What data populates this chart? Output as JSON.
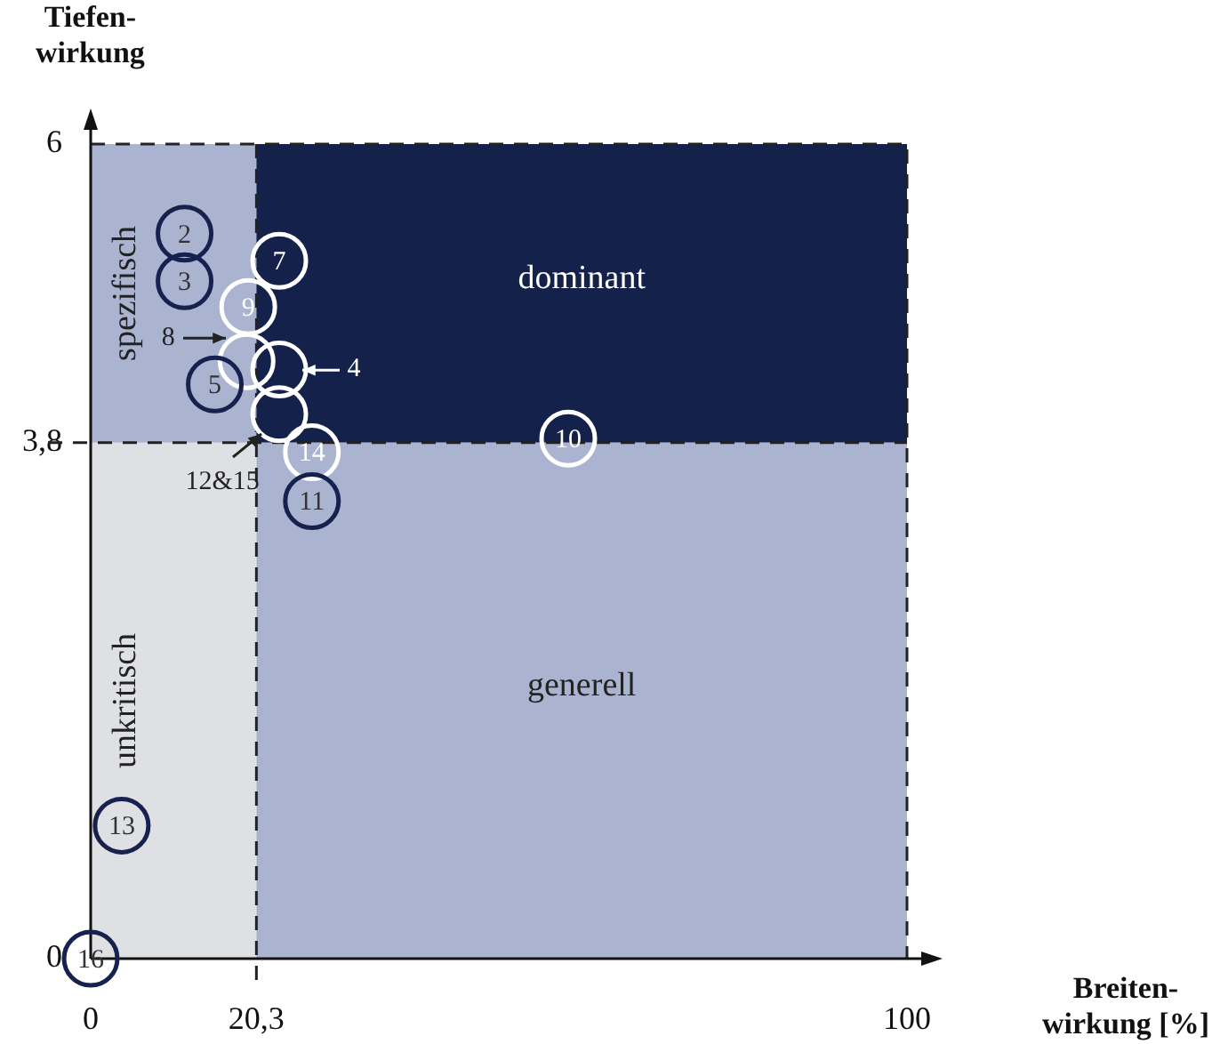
{
  "chart_data": {
    "type": "scatter",
    "xlabel": "Breiten-\nwirkung [%]",
    "ylabel": "Tiefen-\nwirkung",
    "x": [
      11.5,
      11.5,
      23.1,
      19.3,
      19.1,
      15.2,
      23.1,
      23.1,
      27.1,
      27.1,
      58.5,
      3.8,
      0
    ],
    "values": [
      5.34,
      4.99,
      5.14,
      4.8,
      4.4,
      4.23,
      4.34,
      4.01,
      3.73,
      3.37,
      3.83,
      0.98,
      0
    ],
    "colors": [
      "#16214d",
      "#16214d",
      "#ffffff",
      "#ffffff",
      "#ffffff",
      "#16214d",
      "#ffffff",
      "#ffffff",
      "#ffffff",
      "#16214d",
      "#ffffff",
      "#16214d",
      "#16214d"
    ],
    "marker": "circle",
    "xlim": [
      0,
      100
    ],
    "xticks": [
      0,
      {
        "value": 20.3,
        "label": "20,3"
      },
      100
    ],
    "ylim": [
      0,
      6
    ],
    "yticks": [
      0,
      {
        "value": 3.8,
        "label": "3,8"
      },
      6
    ],
    "ref_lines": [
      {
        "axis": "x",
        "value": 20.3,
        "color": "#222222",
        "line_style": "dashed"
      },
      {
        "axis": "y",
        "value": 3.8,
        "color": "#222222",
        "line_style": "dashed"
      }
    ],
    "bands": [
      {
        "axis": "x",
        "from": 0,
        "to": 20.3,
        "color": "#dfe0e3",
        "label": "unkritisch"
      },
      {
        "axis": "x",
        "from": 0,
        "to": 20.3,
        "color": "#aab4d0",
        "label": "spezifisch"
      },
      {
        "axis": "y",
        "from": 3.8,
        "to": 6,
        "color": "#14214b",
        "label": "dominant"
      },
      {
        "axis": "y",
        "from": 0,
        "to": 3.8,
        "color": "#aab4d0",
        "label": "generell"
      }
    ],
    "annotations": [
      {
        "text": "2",
        "x": 11.5,
        "y": 5.34
      },
      {
        "text": "3",
        "x": 11.5,
        "y": 4.99
      },
      {
        "text": "7",
        "x": 23.1,
        "y": 5.14
      },
      {
        "text": "9",
        "x": 19.3,
        "y": 4.8
      },
      {
        "text": "8",
        "x": 19.1,
        "y": 4.4
      },
      {
        "text": "5",
        "x": 15.2,
        "y": 4.23
      },
      {
        "text": "4",
        "x": 23.1,
        "y": 4.34
      },
      {
        "text": "12&15",
        "x": 23.1,
        "y": 4.01
      },
      {
        "text": "14",
        "x": 27.1,
        "y": 3.73
      },
      {
        "text": "11",
        "x": 27.1,
        "y": 3.37
      },
      {
        "text": "10",
        "x": 58.5,
        "y": 3.83
      },
      {
        "text": "13",
        "x": 3.8,
        "y": 0.98
      },
      {
        "text": "16",
        "x": 0,
        "y": 0
      }
    ],
    "grid": false,
    "legend": false
  }
}
